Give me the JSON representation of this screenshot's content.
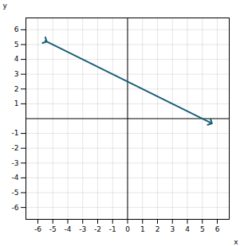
{
  "chart_data": {
    "type": "line",
    "xlabel": "x",
    "ylabel": "y",
    "x": [
      -5.5,
      5.55
    ],
    "values": [
      5.25,
      -0.275
    ],
    "color": "#1a5f78",
    "marker": "arrow",
    "xlim": [
      -6.8,
      6.8
    ],
    "ylim": [
      -6.8,
      6.8
    ],
    "xticks": [
      -6,
      -5,
      -4,
      -3,
      -2,
      -1,
      0,
      1,
      2,
      3,
      4,
      5,
      6
    ],
    "yticks": [
      -6,
      -5,
      -4,
      -3,
      -2,
      -1,
      1,
      2,
      3,
      4,
      5,
      6
    ],
    "grid": true
  }
}
